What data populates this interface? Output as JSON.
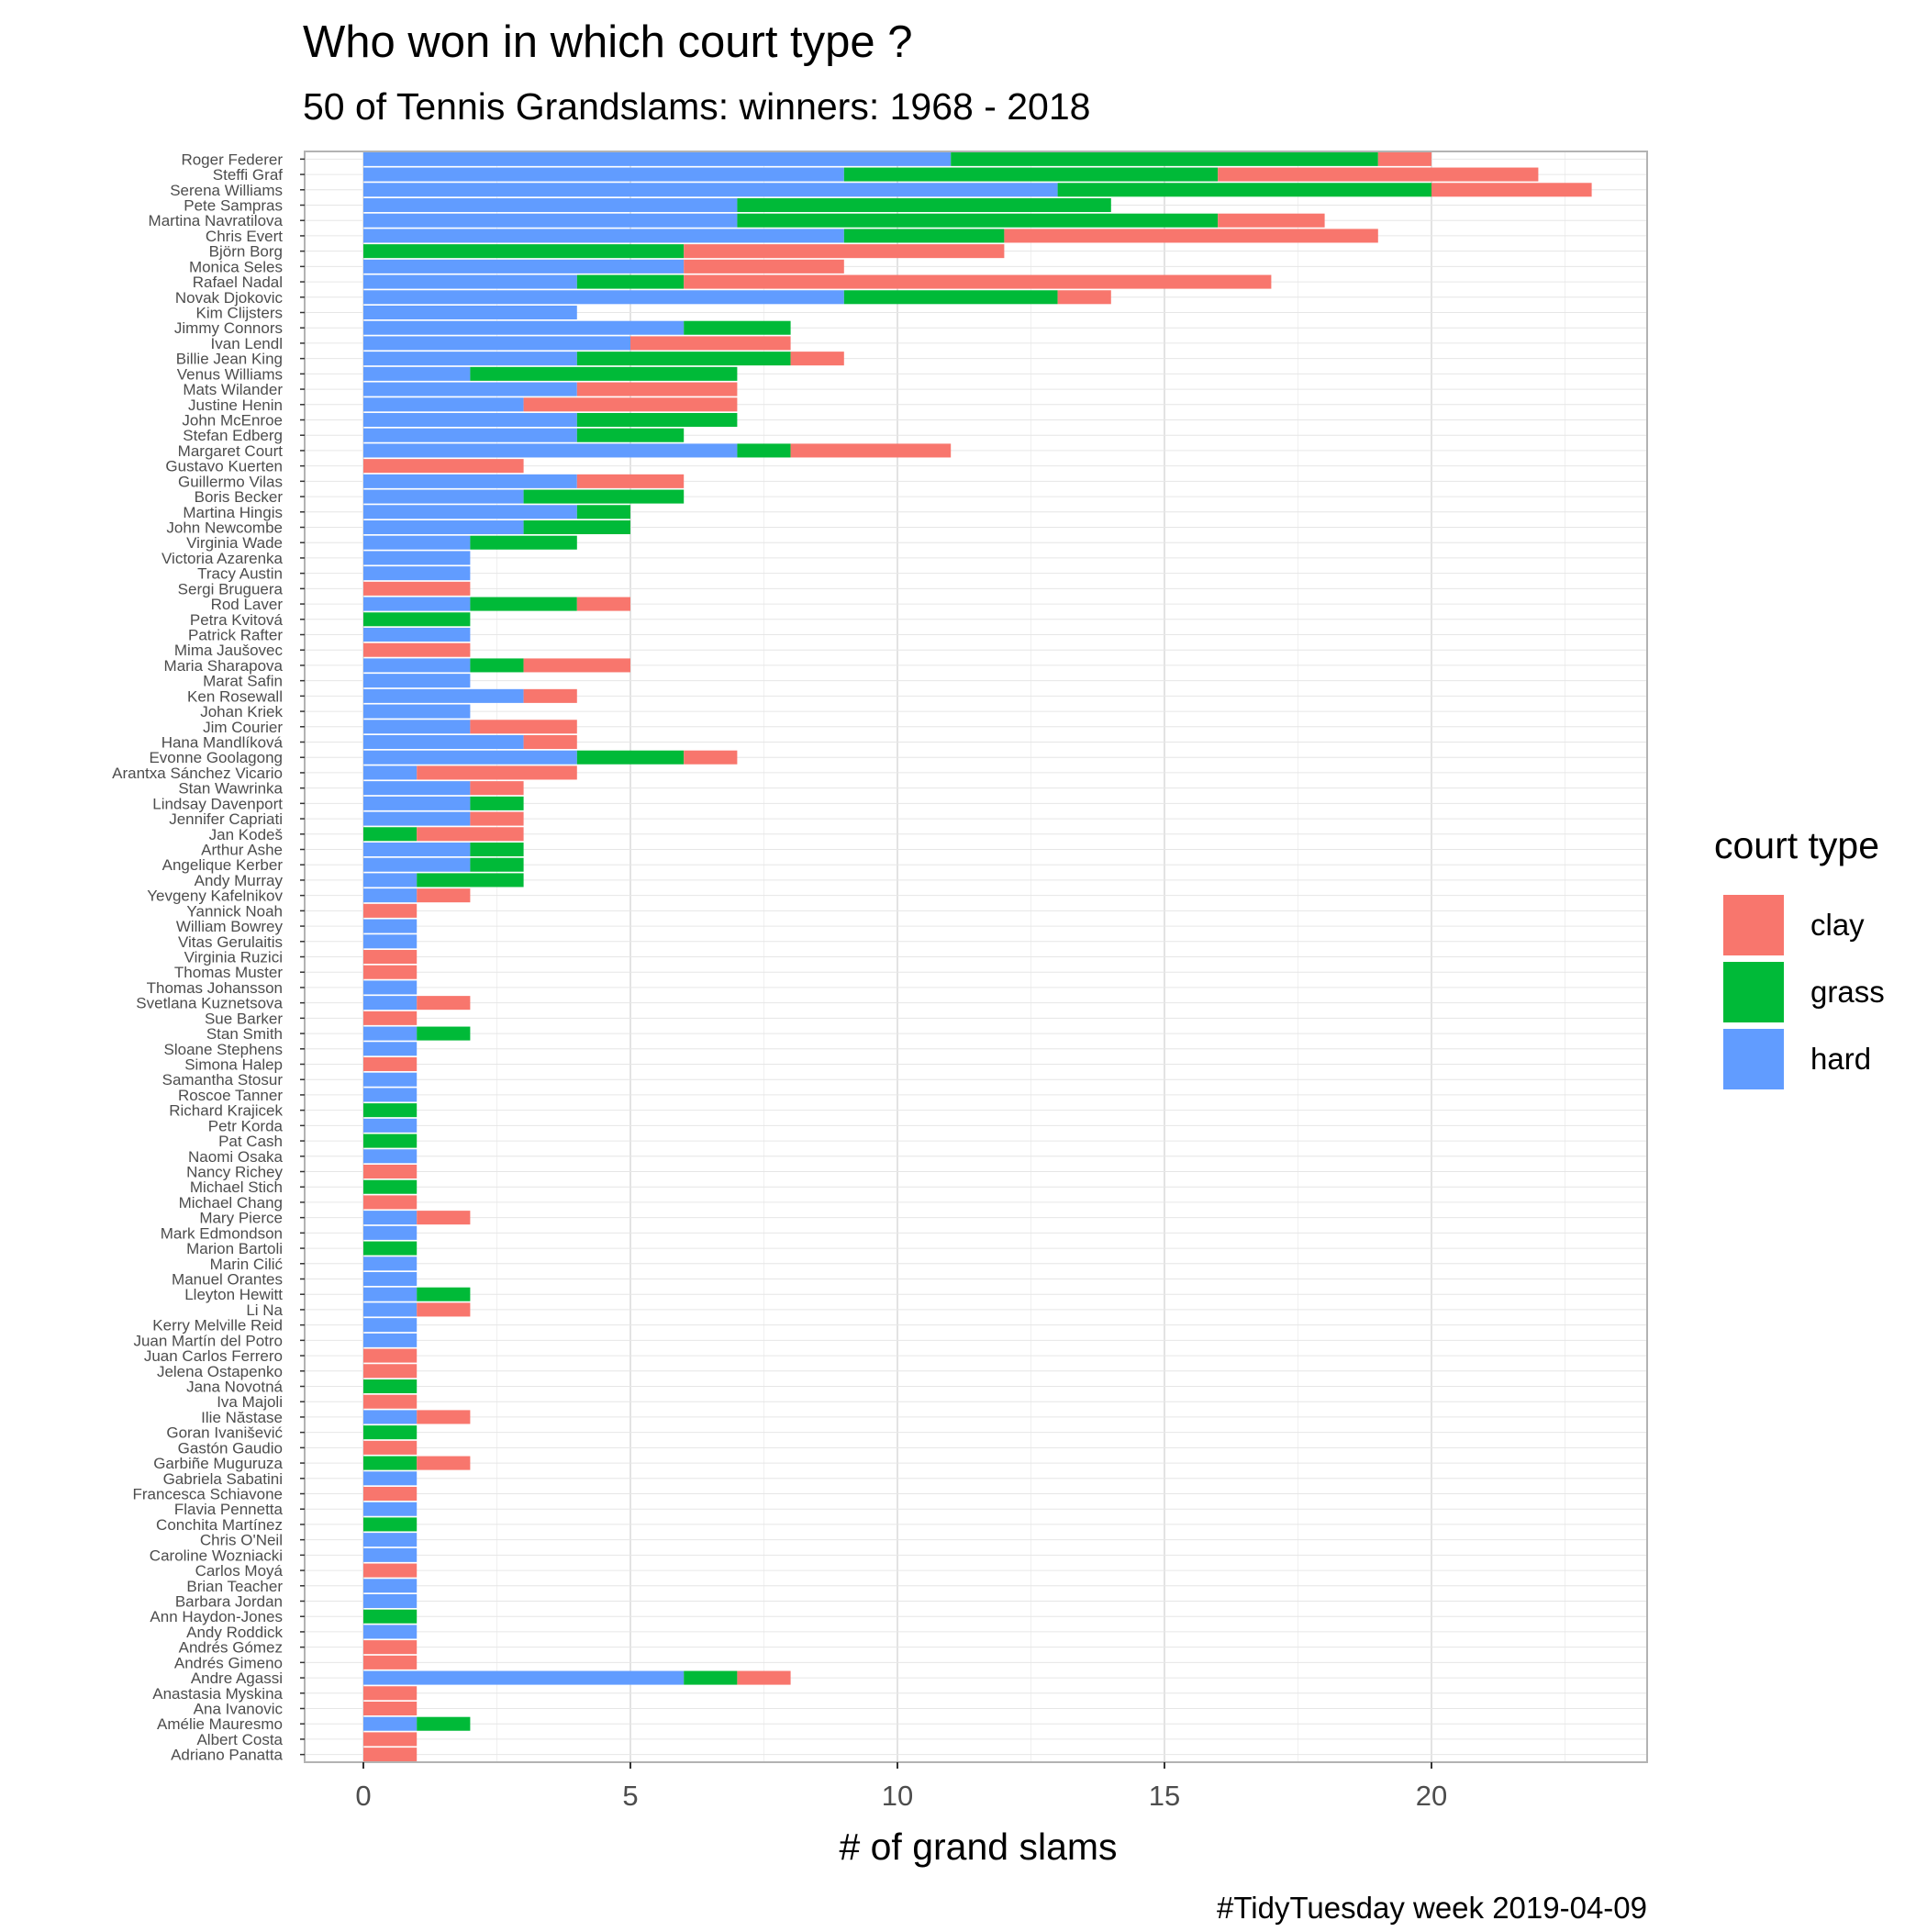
{
  "chart_data": {
    "type": "bar",
    "orientation": "horizontal",
    "stacked": true,
    "title": "Who won in which court type ?",
    "subtitle": "50 of Tennis Grandslams: winners: 1968 - 2018",
    "xlabel": "# of grand slams",
    "ylabel": "",
    "caption": "#TidyTuesday week 2019-04-09",
    "xlim": [
      0,
      23
    ],
    "xticks": [
      0,
      5,
      10,
      15,
      20
    ],
    "grid": true,
    "legend": {
      "title": "court type",
      "position": "right",
      "labels": [
        "clay",
        "grass",
        "hard"
      ]
    },
    "colors": {
      "clay": "#F8766D",
      "grass": "#00BA38",
      "hard": "#619CFF"
    },
    "stack_order": [
      "hard",
      "grass",
      "clay"
    ],
    "categories": [
      "Roger Federer",
      "Steffi Graf",
      "Serena Williams",
      "Pete Sampras",
      "Martina Navratilova",
      "Chris Evert",
      "Björn Borg",
      "Monica Seles",
      "Rafael Nadal",
      "Novak Djokovic",
      "Kim Clijsters",
      "Jimmy Connors",
      "Ivan Lendl",
      "Billie Jean King",
      "Venus Williams",
      "Mats Wilander",
      "Justine Henin",
      "John McEnroe",
      "Stefan Edberg",
      "Margaret Court",
      "Gustavo Kuerten",
      "Guillermo Vilas",
      "Boris Becker",
      "Martina Hingis",
      "John Newcombe",
      "Virginia Wade",
      "Victoria Azarenka",
      "Tracy Austin",
      "Sergi Bruguera",
      "Rod Laver",
      "Petra Kvitová",
      "Patrick Rafter",
      "Mima Jaušovec",
      "Maria Sharapova",
      "Marat Safin",
      "Ken Rosewall",
      "Johan Kriek",
      "Jim Courier",
      "Hana Mandlíková",
      "Evonne Goolagong",
      "Arantxa Sánchez Vicario",
      "Stan Wawrinka",
      "Lindsay Davenport",
      "Jennifer Capriati",
      "Jan Kodeš",
      "Arthur Ashe",
      "Angelique Kerber",
      "Andy Murray",
      "Yevgeny Kafelnikov",
      "Yannick Noah",
      "William Bowrey",
      "Vitas Gerulaitis",
      "Virginia Ruzici",
      "Thomas Muster",
      "Thomas Johansson",
      "Svetlana Kuznetsova",
      "Sue Barker",
      "Stan Smith",
      "Sloane Stephens",
      "Simona Halep",
      "Samantha Stosur",
      "Roscoe Tanner",
      "Richard Krajicek",
      "Petr Korda",
      "Pat Cash",
      "Naomi Osaka",
      "Nancy Richey",
      "Michael Stich",
      "Michael Chang",
      "Mary Pierce",
      "Mark Edmondson",
      "Marion Bartoli",
      "Marin Cilić",
      "Manuel Orantes",
      "Lleyton Hewitt",
      "Li Na",
      "Kerry Melville Reid",
      "Juan Martín del Potro",
      "Juan Carlos Ferrero",
      "Jelena Ostapenko",
      "Jana Novotná",
      "Iva Majoli",
      "Ilie Năstase",
      "Goran Ivanišević",
      "Gastón Gaudio",
      "Garbiñe Muguruza",
      "Gabriela Sabatini",
      "Francesca Schiavone",
      "Flavia Pennetta",
      "Conchita Martínez",
      "Chris O'Neil",
      "Caroline Wozniacki",
      "Carlos Moyá",
      "Brian Teacher",
      "Barbara Jordan",
      "Ann Haydon-Jones",
      "Andy Roddick",
      "Andrés Gómez",
      "Andrés Gimeno",
      "Andre Agassi",
      "Anastasia Myskina",
      "Ana Ivanovic",
      "Amélie Mauresmo",
      "Albert Costa",
      "Adriano Panatta"
    ],
    "series": [
      {
        "name": "hard",
        "values": [
          11,
          9,
          13,
          7,
          7,
          9,
          0,
          6,
          4,
          9,
          4,
          6,
          5,
          4,
          2,
          4,
          3,
          4,
          4,
          7,
          0,
          4,
          3,
          4,
          3,
          2,
          2,
          2,
          0,
          2,
          0,
          2,
          0,
          2,
          2,
          3,
          2,
          2,
          3,
          4,
          1,
          2,
          2,
          2,
          0,
          2,
          2,
          1,
          1,
          0,
          1,
          1,
          0,
          0,
          1,
          1,
          0,
          1,
          1,
          0,
          1,
          1,
          0,
          1,
          0,
          1,
          0,
          0,
          0,
          1,
          1,
          0,
          1,
          1,
          1,
          1,
          1,
          1,
          0,
          0,
          0,
          0,
          1,
          0,
          0,
          0,
          1,
          0,
          1,
          0,
          1,
          1,
          0,
          1,
          1,
          0,
          1,
          0,
          0,
          6,
          0,
          0,
          1,
          0,
          0
        ]
      },
      {
        "name": "grass",
        "values": [
          8,
          7,
          7,
          7,
          9,
          3,
          6,
          0,
          2,
          4,
          0,
          2,
          0,
          4,
          5,
          0,
          0,
          3,
          2,
          1,
          0,
          0,
          3,
          1,
          2,
          2,
          0,
          0,
          0,
          2,
          2,
          0,
          0,
          1,
          0,
          0,
          0,
          0,
          0,
          2,
          0,
          0,
          1,
          0,
          1,
          1,
          1,
          2,
          0,
          0,
          0,
          0,
          0,
          0,
          0,
          0,
          0,
          1,
          0,
          0,
          0,
          0,
          1,
          0,
          1,
          0,
          0,
          1,
          0,
          0,
          0,
          1,
          0,
          0,
          1,
          0,
          0,
          0,
          0,
          0,
          1,
          0,
          0,
          1,
          0,
          1,
          0,
          0,
          0,
          1,
          0,
          0,
          0,
          0,
          0,
          1,
          0,
          0,
          0,
          1,
          0,
          0,
          1,
          0,
          0
        ]
      },
      {
        "name": "clay",
        "values": [
          1,
          6,
          3,
          0,
          2,
          7,
          6,
          3,
          11,
          1,
          0,
          0,
          3,
          1,
          0,
          3,
          4,
          0,
          0,
          3,
          3,
          2,
          0,
          0,
          0,
          0,
          0,
          0,
          2,
          1,
          0,
          0,
          2,
          2,
          0,
          1,
          0,
          2,
          1,
          1,
          3,
          1,
          0,
          1,
          2,
          0,
          0,
          0,
          1,
          1,
          0,
          0,
          1,
          1,
          0,
          1,
          1,
          0,
          0,
          1,
          0,
          0,
          0,
          0,
          0,
          0,
          1,
          0,
          1,
          1,
          0,
          0,
          0,
          0,
          0,
          1,
          0,
          0,
          1,
          1,
          0,
          1,
          1,
          0,
          1,
          1,
          0,
          1,
          0,
          0,
          0,
          0,
          1,
          0,
          0,
          0,
          0,
          1,
          1,
          1,
          1,
          1,
          0,
          1,
          1
        ]
      }
    ]
  }
}
